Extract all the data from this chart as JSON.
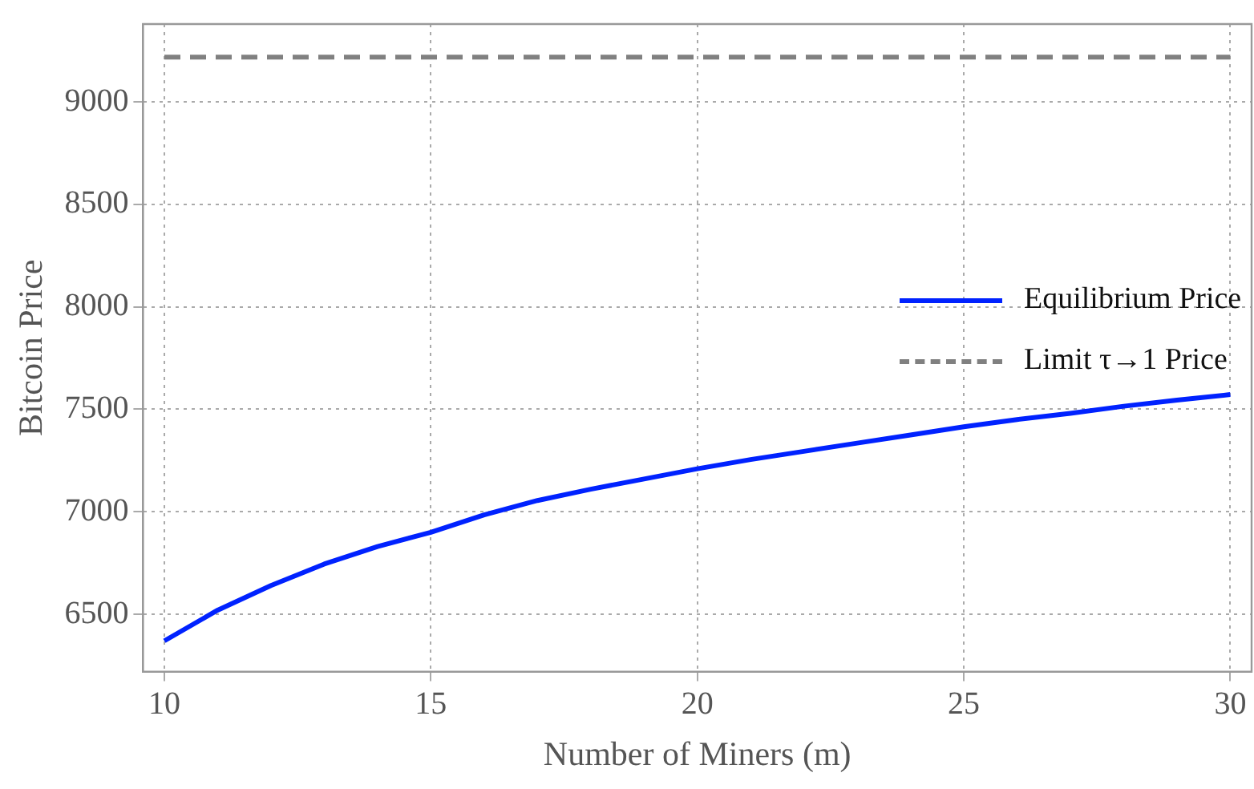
{
  "chart_data": {
    "type": "line",
    "xlabel": "Number of Miners (m)",
    "ylabel": "Bitcoin Price",
    "xlim": [
      9.6,
      30.4
    ],
    "ylim": [
      6220,
      9380
    ],
    "xticks": [
      10,
      15,
      20,
      25,
      30
    ],
    "yticks": [
      6500,
      7000,
      7500,
      8000,
      8500,
      9000
    ],
    "grid": true,
    "legend": "right",
    "marker": "none",
    "series": [
      {
        "name": "Equilibrium Price",
        "color": "#0022ff",
        "line_style": "solid",
        "x": [
          10,
          11,
          12,
          13,
          14,
          15,
          16,
          17,
          18,
          19,
          20,
          21,
          22,
          23,
          24,
          25,
          26,
          27,
          28,
          29,
          30
        ],
        "values": [
          6370,
          6520,
          6640,
          6745,
          6830,
          6900,
          6985,
          7055,
          7110,
          7160,
          7210,
          7255,
          7295,
          7335,
          7375,
          7415,
          7450,
          7480,
          7515,
          7545,
          7572
        ]
      },
      {
        "name": "Limit τ→1 Price",
        "color": "#808080",
        "line_style": "dashed",
        "x": [
          10,
          30
        ],
        "values": [
          9219,
          9219
        ]
      }
    ]
  }
}
